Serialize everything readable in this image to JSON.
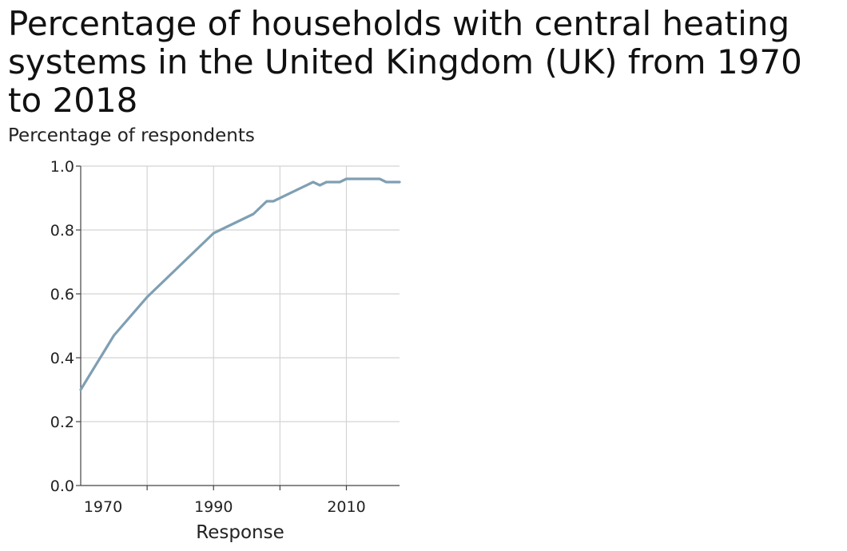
{
  "chart_data": {
    "type": "line",
    "title": "Percentage of households with central heating systems in the United Kingdom (UK) from 1970 to 2018",
    "xlabel": "Response",
    "ylabel": "Percentage of respondents",
    "xlim": [
      1970,
      2018
    ],
    "ylim": [
      0.0,
      1.0
    ],
    "x_ticks": [
      1980,
      1990,
      2000,
      2010
    ],
    "x_tick_labels": [
      {
        "value": 1970,
        "label": "1970"
      },
      {
        "value": 1990,
        "label": "1990"
      },
      {
        "value": 2010,
        "label": "2010"
      }
    ],
    "y_ticks": [
      0.0,
      0.2,
      0.4,
      0.6,
      0.8,
      1.0
    ],
    "y_tick_labels": [
      "0.0",
      "0.2",
      "0.4",
      "0.6",
      "0.8",
      "1.0"
    ],
    "grid": true,
    "legend": "none",
    "series": [
      {
        "name": "Households with central heating",
        "color": "#7f9fb3",
        "x": [
          1970,
          1975,
          1980,
          1985,
          1990,
          1996,
          1998,
          1999,
          2005,
          2006,
          2007,
          2009,
          2010,
          2015,
          2016,
          2018
        ],
        "values": [
          0.3,
          0.47,
          0.59,
          0.69,
          0.79,
          0.85,
          0.89,
          0.89,
          0.95,
          0.94,
          0.95,
          0.95,
          0.96,
          0.96,
          0.95,
          0.95
        ]
      }
    ]
  }
}
